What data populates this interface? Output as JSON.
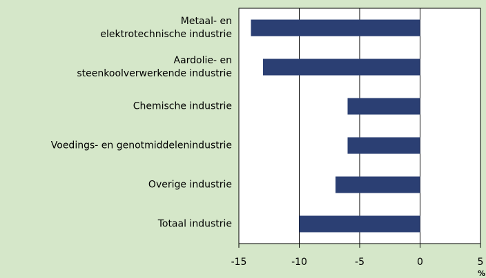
{
  "chart_data": {
    "type": "bar",
    "orientation": "horizontal",
    "categories": [
      "Metaal- en\nelektrotechnische industrie",
      "Aardolie- en\nsteenkoolverwerkende industrie",
      "Chemische industrie",
      "Voedings- en genotmiddelenindustrie",
      "Overige industrie",
      "Totaal industrie"
    ],
    "values": [
      -14,
      -13,
      -6,
      -6,
      -7,
      -10
    ],
    "color": "#2b3f73",
    "xlim": [
      -15,
      5
    ],
    "xticks": [
      -15,
      -10,
      -5,
      0,
      5
    ],
    "xlabel": "%",
    "grid": true
  }
}
